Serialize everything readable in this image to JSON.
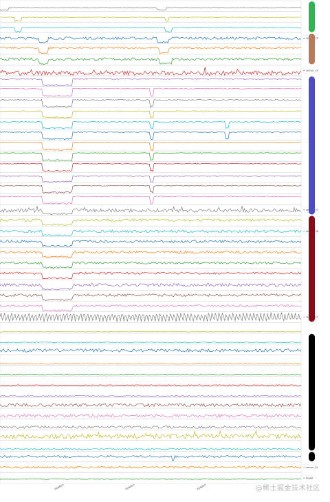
{
  "chart_data": {
    "type": "line",
    "title": "",
    "xlabel": "",
    "ylabel": "",
    "x_ticks": [
      "/hidden",
      "/hidden",
      "/hidden"
    ],
    "grid": false,
    "legend": "right",
    "series": [
      {
        "name": "",
        "color": "#7f7f7f",
        "base": 0.35,
        "noise": 0.06,
        "drops": [
          [
            0.0,
            0.03
          ],
          [
            0.52,
            0.55
          ]
        ]
      },
      {
        "name": "",
        "color": "#bcbd22",
        "base": 0.45,
        "noise": 0.05,
        "drops": [
          [
            0.05,
            0.07
          ],
          [
            0.55,
            0.56
          ]
        ]
      },
      {
        "name": "",
        "color": "#17becf",
        "base": 0.5,
        "noise": 0.06,
        "drops": [
          [
            0.05,
            0.07
          ],
          [
            0.55,
            0.57
          ]
        ]
      },
      {
        "name": "sensor_16",
        "color": "#1f77b4",
        "base": 0.5,
        "noise": 0.25,
        "drops": [
          [
            0.13,
            0.16
          ],
          [
            0.52,
            0.56
          ]
        ]
      },
      {
        "name": "",
        "color": "#ff7f0e",
        "base": 0.6,
        "noise": 0.2,
        "drops": [
          [
            0.13,
            0.16
          ],
          [
            0.53,
            0.56
          ]
        ]
      },
      {
        "name": "",
        "color": "#2ca02c",
        "base": 0.55,
        "noise": 0.25,
        "drops": [
          [
            0.13,
            0.16
          ],
          [
            0.53,
            0.57
          ]
        ]
      },
      {
        "name": "sensor_19",
        "color": "#d62728",
        "base": 0.25,
        "noise": 0.4,
        "drops": []
      },
      {
        "name": "",
        "color": "#9467bd",
        "base": 0.7,
        "noise": 0.1,
        "drops": [
          [
            0.14,
            0.24
          ]
        ]
      },
      {
        "name": "",
        "color": "#e377c2",
        "base": 0.8,
        "noise": 0.08,
        "drops": [
          [
            0.14,
            0.24
          ],
          [
            0.5,
            0.51
          ]
        ]
      },
      {
        "name": "",
        "color": "#7f7f7f",
        "base": 0.75,
        "noise": 0.1,
        "drops": [
          [
            0.14,
            0.24
          ],
          [
            0.5,
            0.51
          ]
        ]
      },
      {
        "name": "",
        "color": "#bcbd22",
        "base": 0.7,
        "noise": 0.08,
        "drops": [
          [
            0.14,
            0.24
          ],
          [
            0.5,
            0.51
          ]
        ]
      },
      {
        "name": "",
        "color": "#17becf",
        "base": 0.7,
        "noise": 0.1,
        "drops": [
          [
            0.14,
            0.24
          ],
          [
            0.5,
            0.51
          ],
          [
            0.75,
            0.76
          ]
        ]
      },
      {
        "name": "",
        "color": "#1f77b4",
        "base": 0.75,
        "noise": 0.08,
        "drops": [
          [
            0.14,
            0.24
          ],
          [
            0.5,
            0.51
          ],
          [
            0.75,
            0.76
          ]
        ]
      },
      {
        "name": "",
        "color": "#ff7f0e",
        "base": 0.8,
        "noise": 0.06,
        "drops": [
          [
            0.14,
            0.24
          ],
          [
            0.5,
            0.51
          ]
        ]
      },
      {
        "name": "",
        "color": "#2ca02c",
        "base": 0.8,
        "noise": 0.06,
        "drops": [
          [
            0.14,
            0.24
          ],
          [
            0.5,
            0.51
          ]
        ]
      },
      {
        "name": "",
        "color": "#d62728",
        "base": 0.8,
        "noise": 0.06,
        "drops": [
          [
            0.14,
            0.24
          ],
          [
            0.5,
            0.51
          ]
        ]
      },
      {
        "name": "",
        "color": "#9467bd",
        "base": 0.65,
        "noise": 0.08,
        "drops": [
          [
            0.14,
            0.24
          ],
          [
            0.5,
            0.51
          ]
        ]
      },
      {
        "name": "",
        "color": "#8c564b",
        "base": 0.75,
        "noise": 0.08,
        "drops": [
          [
            0.14,
            0.24
          ],
          [
            0.5,
            0.51
          ]
        ]
      },
      {
        "name": "",
        "color": "#e377c2",
        "base": 0.75,
        "noise": 0.08,
        "drops": [
          [
            0.14,
            0.24
          ],
          [
            0.5,
            0.51
          ]
        ]
      },
      {
        "name": "sensor_37",
        "color": "#7f7f7f",
        "base": 0.45,
        "noise": 0.35,
        "drops": [
          [
            0.14,
            0.24
          ]
        ]
      },
      {
        "name": "",
        "color": "#bcbd22",
        "base": 0.55,
        "noise": 0.25,
        "drops": [
          [
            0.14,
            0.24
          ]
        ]
      },
      {
        "name": "sensor_38",
        "color": "#17becf",
        "base": 0.5,
        "noise": 0.25,
        "drops": [
          [
            0.14,
            0.24
          ]
        ]
      },
      {
        "name": "",
        "color": "#1f77b4",
        "base": 0.55,
        "noise": 0.25,
        "drops": [
          [
            0.14,
            0.24
          ]
        ]
      },
      {
        "name": "",
        "color": "#ff7f0e",
        "base": 0.55,
        "noise": 0.25,
        "drops": [
          [
            0.14,
            0.24
          ]
        ]
      },
      {
        "name": "",
        "color": "#2ca02c",
        "base": 0.55,
        "noise": 0.2,
        "drops": [
          [
            0.14,
            0.24
          ]
        ]
      },
      {
        "name": "",
        "color": "#d62728",
        "base": 0.6,
        "noise": 0.2,
        "drops": [
          [
            0.14,
            0.24
          ]
        ]
      },
      {
        "name": "",
        "color": "#9467bd",
        "base": 0.5,
        "noise": 0.3,
        "drops": [
          [
            0.14,
            0.24
          ]
        ]
      },
      {
        "name": "",
        "color": "#8c564b",
        "base": 0.55,
        "noise": 0.25,
        "drops": [
          [
            0.14,
            0.24
          ]
        ]
      },
      {
        "name": "",
        "color": "#e377c2",
        "base": 0.55,
        "noise": 0.2,
        "drops": [
          [
            0.14,
            0.24
          ]
        ]
      },
      {
        "name": "sensor_47",
        "color": "#7f7f7f",
        "base": 0.5,
        "noise": 0.9,
        "drops": []
      },
      {
        "name": "",
        "color": "#bcbd22",
        "base": 0.15,
        "noise": 0.08,
        "drops": []
      },
      {
        "name": "",
        "color": "#17becf",
        "base": 0.15,
        "noise": 0.1,
        "drops": []
      },
      {
        "name": "",
        "color": "#1f77b4",
        "base": 0.4,
        "noise": 0.3,
        "drops": []
      },
      {
        "name": "",
        "color": "#ff7f0e",
        "base": 0.15,
        "noise": 0.08,
        "drops": []
      },
      {
        "name": "",
        "color": "#2ca02c",
        "base": 0.15,
        "noise": 0.1,
        "drops": []
      },
      {
        "name": "",
        "color": "#d62728",
        "base": 0.15,
        "noise": 0.1,
        "drops": []
      },
      {
        "name": "",
        "color": "#9467bd",
        "base": 0.15,
        "noise": 0.1,
        "drops": []
      },
      {
        "name": "",
        "color": "#8c564b",
        "base": 0.3,
        "noise": 0.3,
        "drops": []
      },
      {
        "name": "",
        "color": "#e377c2",
        "base": 0.3,
        "noise": 0.3,
        "drops": []
      },
      {
        "name": "",
        "color": "#7f7f7f",
        "base": 0.25,
        "noise": 0.25,
        "drops": []
      },
      {
        "name": "",
        "color": "#bcbd22",
        "base": 0.4,
        "noise": 0.45,
        "drops": []
      },
      {
        "name": "",
        "color": "#17becf",
        "base": 0.2,
        "noise": 0.15,
        "drops": []
      },
      {
        "name": "",
        "color": "#1f77b4",
        "base": 0.5,
        "noise": 0.2,
        "drops": [
          [
            0.57,
            0.58
          ]
        ]
      },
      {
        "name": "sensor_51",
        "color": "#ff7f0e",
        "base": 0.5,
        "noise": 0.2,
        "drops": []
      },
      {
        "name": "target",
        "color": "#2ca02c",
        "base": 0.4,
        "noise": 0.05,
        "drops": []
      }
    ],
    "groups": [
      {
        "from": 0,
        "to": 2,
        "color": "#2db551"
      },
      {
        "from": 3,
        "to": 5,
        "color": "#b87a5a"
      },
      {
        "from": 7,
        "to": 19,
        "color": "#4a4cc8"
      },
      {
        "from": 20,
        "to": 29,
        "color": "#8a0a18"
      },
      {
        "from": 31,
        "to": 41,
        "color": "#000000"
      },
      {
        "from": 42,
        "to": 42,
        "color": "#000000"
      }
    ]
  },
  "watermark": "@稀土掘金技术社区"
}
